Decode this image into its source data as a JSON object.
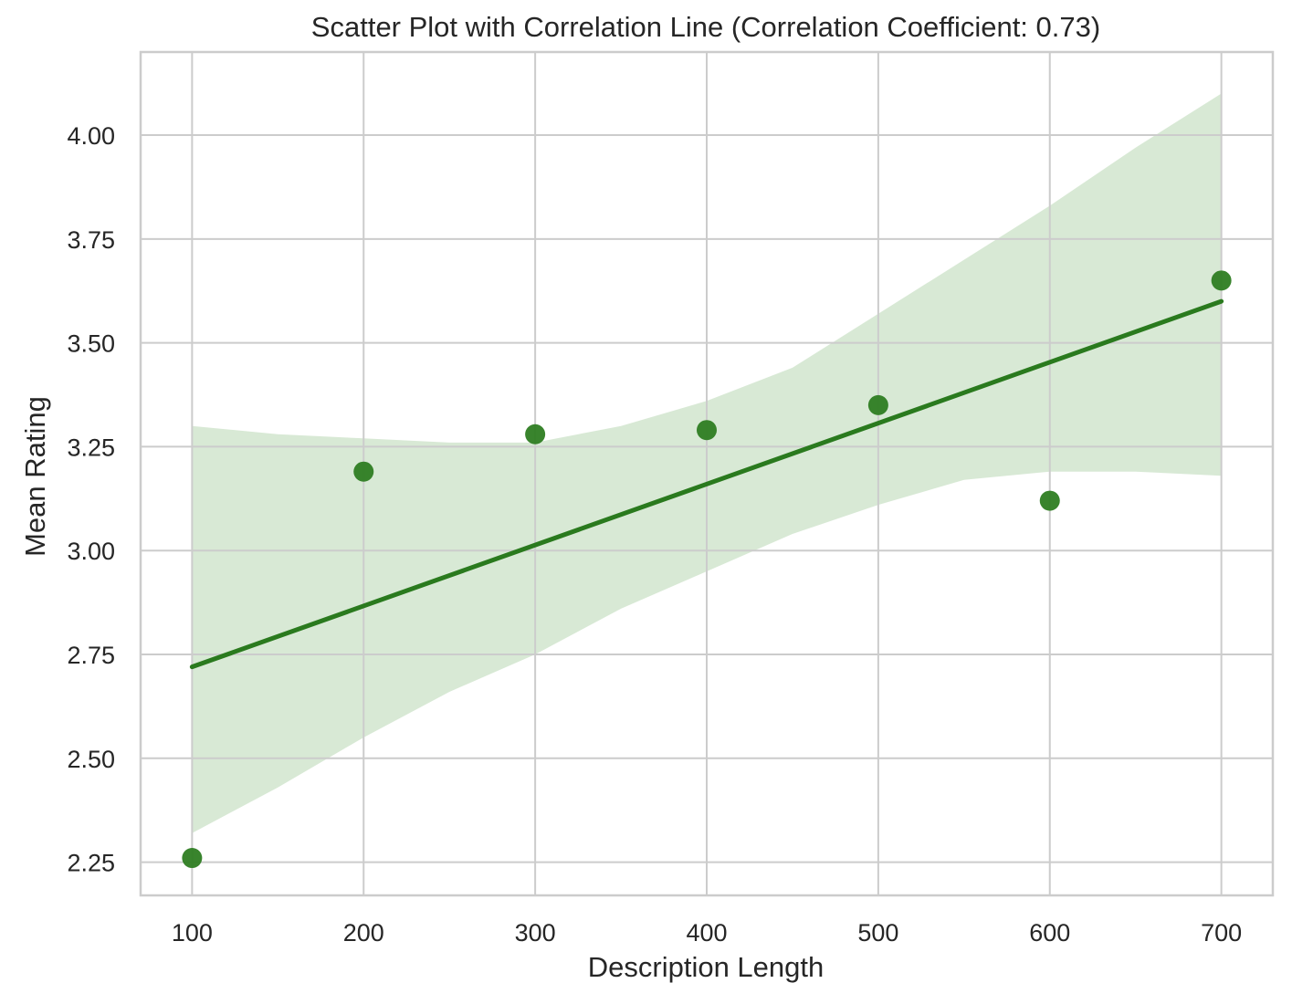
{
  "chart_data": {
    "type": "scatter",
    "title": "Scatter Plot with Correlation Line (Correlation Coefficient: 0.73)",
    "xlabel": "Description Length",
    "ylabel": "Mean Rating",
    "xlim": [
      70,
      730
    ],
    "ylim": [
      2.17,
      4.2
    ],
    "xticks": [
      100,
      200,
      300,
      400,
      500,
      600,
      700
    ],
    "xtick_labels": [
      "100",
      "200",
      "300",
      "400",
      "500",
      "600",
      "700"
    ],
    "yticks": [
      2.25,
      2.5,
      2.75,
      3.0,
      3.25,
      3.5,
      3.75,
      4.0
    ],
    "ytick_labels": [
      "2.25",
      "2.50",
      "2.75",
      "3.00",
      "3.25",
      "3.50",
      "3.75",
      "4.00"
    ],
    "grid": true,
    "points": {
      "x": [
        100,
        200,
        300,
        400,
        500,
        600,
        700
      ],
      "y": [
        2.26,
        3.19,
        3.28,
        3.29,
        3.35,
        3.12,
        3.65
      ]
    },
    "regression_line": {
      "x": [
        100,
        700
      ],
      "y": [
        2.72,
        3.6
      ]
    },
    "confidence_band": {
      "x": [
        100,
        150,
        200,
        250,
        300,
        350,
        400,
        450,
        500,
        550,
        600,
        650,
        700
      ],
      "upper": [
        3.3,
        3.28,
        3.27,
        3.26,
        3.26,
        3.3,
        3.36,
        3.44,
        3.57,
        3.7,
        3.83,
        3.97,
        4.1
      ],
      "lower": [
        2.32,
        2.43,
        2.55,
        2.66,
        2.75,
        2.86,
        2.95,
        3.04,
        3.11,
        3.17,
        3.19,
        3.19,
        3.18
      ]
    },
    "colors": {
      "point": "#2e7d22",
      "line": "#2a7a1e",
      "band": "#d6e8d3"
    }
  }
}
